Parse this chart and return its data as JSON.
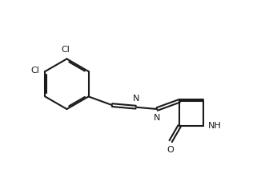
{
  "bg_color": "#ffffff",
  "line_color": "#1a1a1a",
  "text_color": "#1a1a1a",
  "lw": 1.5,
  "dbo": 0.06,
  "figsize": [
    3.36,
    2.22
  ],
  "dpi": 100,
  "xlim": [
    -0.5,
    9.5
  ],
  "ylim": [
    -0.5,
    6.5
  ]
}
